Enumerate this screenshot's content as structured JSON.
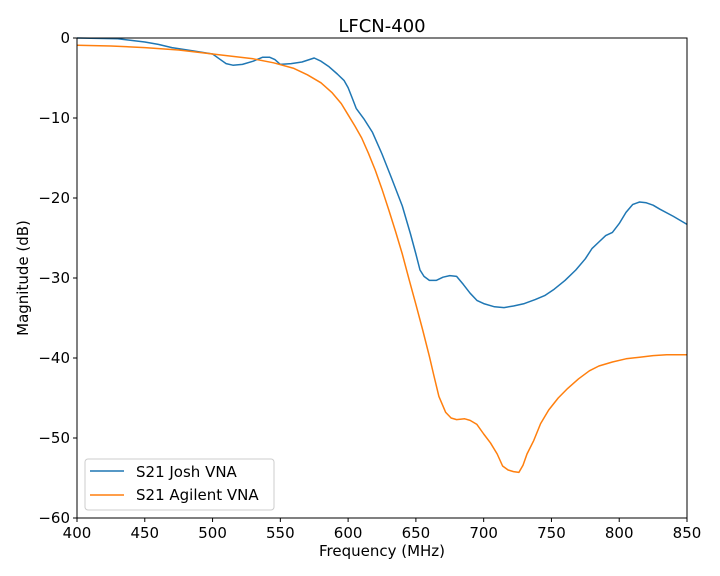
{
  "chart_data": {
    "type": "line",
    "title": "LFCN-400",
    "xlabel": "Frequency (MHz)",
    "ylabel": "Magnitude (dB)",
    "xlim": [
      400,
      850
    ],
    "ylim": [
      -60,
      0
    ],
    "xticks": [
      400,
      450,
      500,
      550,
      600,
      650,
      700,
      750,
      800,
      850
    ],
    "yticks": [
      0,
      -10,
      -20,
      -30,
      -40,
      -50,
      -60
    ],
    "xtick_labels": [
      "400",
      "450",
      "500",
      "550",
      "600",
      "650",
      "700",
      "750",
      "800",
      "850"
    ],
    "ytick_labels": [
      "0",
      "−10",
      "−20",
      "−30",
      "−40",
      "−50",
      "−60"
    ],
    "grid": false,
    "legend_position": "lower left",
    "series": [
      {
        "name": "S21 Josh VNA",
        "color": "#1f77b4",
        "x": [
          400,
          430,
          450,
          460,
          470,
          485,
          500,
          505,
          510,
          515,
          522,
          530,
          537,
          542,
          546,
          550,
          558,
          566,
          575,
          580,
          586,
          592,
          597,
          600,
          603,
          606,
          612,
          618,
          625,
          632,
          640,
          646,
          650,
          653,
          656,
          660,
          665,
          670,
          675,
          680,
          685,
          690,
          695,
          700,
          708,
          715,
          722,
          730,
          738,
          745,
          752,
          760,
          768,
          775,
          780,
          785,
          790,
          795,
          800,
          805,
          810,
          815,
          820,
          825,
          830,
          840,
          850
        ],
        "values": [
          0,
          -0.1,
          -0.5,
          -0.8,
          -1.2,
          -1.6,
          -2.0,
          -2.6,
          -3.2,
          -3.4,
          -3.3,
          -2.9,
          -2.4,
          -2.4,
          -2.7,
          -3.3,
          -3.2,
          -3.0,
          -2.5,
          -2.9,
          -3.6,
          -4.5,
          -5.3,
          -6.2,
          -7.5,
          -8.8,
          -10.2,
          -11.8,
          -14.5,
          -17.5,
          -21.0,
          -24.5,
          -27.0,
          -29.0,
          -29.8,
          -30.3,
          -30.3,
          -29.9,
          -29.7,
          -29.8,
          -30.8,
          -31.9,
          -32.8,
          -33.2,
          -33.6,
          -33.7,
          -33.5,
          -33.2,
          -32.7,
          -32.2,
          -31.4,
          -30.3,
          -29.0,
          -27.6,
          -26.3,
          -25.5,
          -24.7,
          -24.3,
          -23.2,
          -21.8,
          -20.8,
          -20.5,
          -20.6,
          -20.9,
          -21.4,
          -22.3,
          -23.3
        ]
      },
      {
        "name": "S21 Agilent VNA",
        "color": "#ff7f0e",
        "x": [
          400,
          425,
          450,
          475,
          500,
          515,
          530,
          545,
          560,
          570,
          580,
          588,
          595,
          600,
          605,
          610,
          615,
          620,
          625,
          630,
          635,
          640,
          645,
          650,
          655,
          660,
          663,
          667,
          672,
          676,
          680,
          686,
          690,
          695,
          700,
          705,
          710,
          714,
          718,
          722,
          726,
          729,
          732,
          737,
          742,
          748,
          755,
          762,
          770,
          778,
          785,
          795,
          805,
          815,
          825,
          835,
          845,
          850
        ],
        "values": [
          -0.9,
          -1.0,
          -1.2,
          -1.5,
          -2.0,
          -2.3,
          -2.6,
          -3.1,
          -3.8,
          -4.6,
          -5.6,
          -6.8,
          -8.2,
          -9.6,
          -11.0,
          -12.5,
          -14.4,
          -16.5,
          -18.9,
          -21.5,
          -24.2,
          -27.0,
          -30.2,
          -33.3,
          -36.5,
          -39.8,
          -42.0,
          -44.8,
          -46.8,
          -47.5,
          -47.7,
          -47.6,
          -47.8,
          -48.3,
          -49.5,
          -50.6,
          -52.0,
          -53.5,
          -54.0,
          -54.2,
          -54.3,
          -53.4,
          -52.0,
          -50.3,
          -48.2,
          -46.5,
          -45.0,
          -43.8,
          -42.6,
          -41.6,
          -41.0,
          -40.5,
          -40.1,
          -39.9,
          -39.7,
          -39.6,
          -39.6,
          -39.6
        ]
      }
    ]
  },
  "legend": {
    "items": [
      {
        "label": "S21 Josh VNA",
        "color": "#1f77b4"
      },
      {
        "label": "S21 Agilent VNA",
        "color": "#ff7f0e"
      }
    ]
  }
}
